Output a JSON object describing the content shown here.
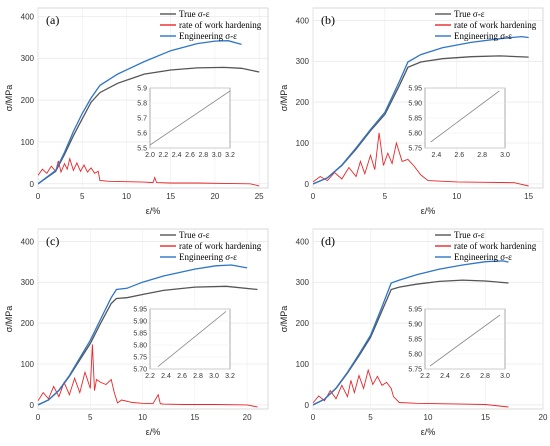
{
  "chart_data": [
    {
      "panel_label": "(a)",
      "type": "line",
      "xlabel": "ε/%",
      "ylabel": "σ/MPa",
      "xlim": [
        0,
        26
      ],
      "xticks": [
        0,
        5,
        10,
        15,
        20,
        25
      ],
      "ylim": [
        -10,
        420
      ],
      "yticks": [
        0,
        100,
        200,
        300,
        400
      ],
      "legend_position": "top-right",
      "grid": true,
      "series": [
        {
          "name": "True σ-ε",
          "color": "#555555",
          "x": [
            0,
            2,
            3,
            4,
            5,
            6,
            7,
            9,
            12,
            15,
            18,
            21,
            23,
            25
          ],
          "y": [
            0,
            30,
            70,
            115,
            155,
            195,
            218,
            240,
            262,
            272,
            277,
            278,
            276,
            267
          ]
        },
        {
          "name": "rate of work hardening",
          "color": "#e8272a",
          "x": [
            0,
            0.5,
            1,
            1.5,
            2,
            2.3,
            2.6,
            3,
            3.3,
            3.6,
            4,
            4.4,
            4.8,
            5.2,
            5.6,
            6,
            6.4,
            6.8,
            7,
            8,
            10,
            12,
            13,
            13.2,
            13.4,
            15,
            18,
            21,
            24,
            25
          ],
          "y": [
            20,
            35,
            25,
            42,
            30,
            55,
            28,
            48,
            35,
            60,
            32,
            50,
            30,
            45,
            28,
            38,
            25,
            30,
            8,
            6,
            5,
            4,
            3,
            15,
            3,
            2,
            2,
            1,
            0,
            -5
          ]
        },
        {
          "name": "Engineering σ-ε",
          "color": "#2e75c9",
          "x": [
            0,
            2,
            3,
            4,
            5,
            6,
            7,
            9,
            12,
            15,
            18,
            20,
            21.5,
            23
          ],
          "y": [
            0,
            32,
            75,
            125,
            168,
            205,
            235,
            262,
            292,
            318,
            335,
            341,
            342,
            333
          ]
        }
      ],
      "inset": {
        "xlim": [
          2.0,
          3.2
        ],
        "xticks": [
          2.0,
          2.2,
          2.4,
          2.6,
          2.8,
          3.0,
          3.2
        ],
        "ylim": [
          5.5,
          5.9
        ],
        "yticks": [
          5.5,
          5.6,
          5.7,
          5.8,
          5.9
        ],
        "line": {
          "x": [
            2.0,
            3.2
          ],
          "y": [
            5.52,
            5.88
          ]
        }
      }
    },
    {
      "panel_label": "(b)",
      "type": "line",
      "xlabel": "ε/%",
      "ylabel": "σ/MPa",
      "xlim": [
        0,
        16
      ],
      "xticks": [
        0,
        5,
        10,
        15
      ],
      "ylim": [
        -10,
        430
      ],
      "yticks": [
        0,
        100,
        200,
        300,
        400
      ],
      "legend_position": "top-right",
      "grid": true,
      "series": [
        {
          "name": "True σ-ε",
          "color": "#555555",
          "x": [
            0,
            1,
            2,
            3,
            4,
            5,
            6,
            6.6,
            7.5,
            9,
            11,
            13,
            15
          ],
          "y": [
            0,
            15,
            45,
            85,
            130,
            170,
            240,
            285,
            298,
            306,
            311,
            313,
            310
          ]
        },
        {
          "name": "rate of work hardening",
          "color": "#e8272a",
          "x": [
            0,
            0.5,
            1,
            1.5,
            2,
            2.5,
            3,
            3.3,
            3.6,
            4,
            4.3,
            4.6,
            4.9,
            5.2,
            5.5,
            5.8,
            6.2,
            6.6,
            7,
            7.5,
            8,
            10,
            12,
            14,
            15
          ],
          "y": [
            5,
            18,
            8,
            28,
            12,
            40,
            18,
            55,
            25,
            70,
            35,
            125,
            45,
            75,
            50,
            100,
            55,
            60,
            45,
            22,
            8,
            5,
            4,
            3,
            -5
          ]
        },
        {
          "name": "Engineering σ-ε",
          "color": "#2e75c9",
          "x": [
            0,
            1,
            2,
            3,
            4,
            5,
            6,
            6.6,
            7.5,
            9,
            11,
            13,
            14.5,
            15
          ],
          "y": [
            0,
            15,
            46,
            88,
            133,
            175,
            250,
            298,
            316,
            333,
            346,
            355,
            360,
            358
          ]
        }
      ],
      "inset": {
        "xlim": [
          2.3,
          3.0
        ],
        "xticks": [
          2.4,
          2.6,
          2.8,
          3.0
        ],
        "ylim": [
          5.75,
          5.95
        ],
        "yticks": [
          5.75,
          5.8,
          5.85,
          5.9,
          5.95
        ],
        "line": {
          "x": [
            2.35,
            2.95
          ],
          "y": [
            5.77,
            5.94
          ]
        }
      }
    },
    {
      "panel_label": "(c)",
      "type": "line",
      "xlabel": "ε/%",
      "ylabel": "σ/MPa",
      "xlim": [
        0,
        22
      ],
      "xticks": [
        0,
        5,
        10,
        15,
        20
      ],
      "ylim": [
        -10,
        430
      ],
      "yticks": [
        0,
        100,
        200,
        300,
        400
      ],
      "legend_position": "top-right",
      "grid": true,
      "series": [
        {
          "name": "True σ-ε",
          "color": "#555555",
          "x": [
            0,
            1,
            2,
            3,
            4,
            5,
            6,
            7,
            7.5,
            8.5,
            10,
            12,
            15,
            18,
            21
          ],
          "y": [
            0,
            12,
            35,
            70,
            110,
            150,
            200,
            248,
            260,
            262,
            270,
            280,
            288,
            290,
            282
          ]
        },
        {
          "name": "rate of work hardening",
          "color": "#e8272a",
          "x": [
            0,
            0.5,
            1,
            1.5,
            2,
            2.5,
            3,
            3.5,
            4,
            4.5,
            5,
            5.2,
            5.4,
            5.6,
            6,
            6.5,
            7,
            7.3,
            7.6,
            8,
            9,
            10,
            11,
            11.5,
            11.7,
            12,
            14,
            17,
            20,
            21
          ],
          "y": [
            10,
            30,
            15,
            45,
            20,
            55,
            25,
            65,
            30,
            80,
            40,
            148,
            35,
            62,
            55,
            50,
            62,
            30,
            5,
            12,
            6,
            4,
            3,
            25,
            3,
            2,
            1,
            1,
            0,
            -5
          ]
        },
        {
          "name": "Engineering σ-ε",
          "color": "#2e75c9",
          "x": [
            0,
            1,
            2,
            3,
            4,
            5,
            6,
            7,
            7.5,
            8.5,
            10,
            12,
            15,
            17,
            18.5,
            20
          ],
          "y": [
            0,
            12,
            36,
            72,
            115,
            158,
            210,
            262,
            282,
            285,
            300,
            315,
            332,
            340,
            342,
            335
          ]
        }
      ],
      "inset": {
        "xlim": [
          2.2,
          3.2
        ],
        "xticks": [
          2.2,
          2.4,
          2.6,
          2.8,
          3.0,
          3.2
        ],
        "ylim": [
          5.7,
          5.95
        ],
        "yticks": [
          5.7,
          5.75,
          5.8,
          5.85,
          5.9,
          5.95
        ],
        "line": {
          "x": [
            2.3,
            3.15
          ],
          "y": [
            5.71,
            5.94
          ]
        }
      }
    },
    {
      "panel_label": "(d)",
      "type": "line",
      "xlabel": "ε/%",
      "ylabel": "σ/MPa",
      "xlim": [
        0,
        20
      ],
      "xticks": [
        0,
        5,
        10,
        15,
        20
      ],
      "ylim": [
        -10,
        430
      ],
      "yticks": [
        0,
        100,
        200,
        300,
        400
      ],
      "legend_position": "top-right",
      "grid": true,
      "series": [
        {
          "name": "True σ-ε",
          "color": "#555555",
          "x": [
            0,
            1,
            2,
            3,
            4,
            5,
            6,
            6.8,
            7.5,
            9,
            11,
            13,
            15,
            17
          ],
          "y": [
            0,
            14,
            40,
            78,
            120,
            165,
            230,
            282,
            288,
            295,
            302,
            305,
            303,
            298
          ]
        },
        {
          "name": "rate of work hardening",
          "color": "#e8272a",
          "x": [
            0,
            0.5,
            1,
            1.5,
            2,
            2.5,
            3,
            3.3,
            3.6,
            4,
            4.4,
            4.8,
            5.2,
            5.6,
            6,
            6.4,
            6.8,
            7,
            7.5,
            9,
            11,
            13,
            15,
            17
          ],
          "y": [
            5,
            22,
            10,
            35,
            15,
            48,
            20,
            60,
            30,
            72,
            40,
            85,
            50,
            70,
            48,
            55,
            40,
            20,
            6,
            4,
            3,
            2,
            1,
            -5
          ]
        },
        {
          "name": "Engineering σ-ε",
          "color": "#2e75c9",
          "x": [
            0,
            1,
            2,
            3,
            4,
            5,
            6,
            6.8,
            7.5,
            9,
            11,
            13,
            15,
            16.5,
            17
          ],
          "y": [
            0,
            14,
            41,
            80,
            124,
            170,
            240,
            298,
            305,
            318,
            332,
            342,
            350,
            352,
            349
          ]
        }
      ],
      "inset": {
        "xlim": [
          2.2,
          3.0
        ],
        "xticks": [
          2.2,
          2.4,
          2.6,
          2.8,
          3.0
        ],
        "ylim": [
          5.75,
          5.95
        ],
        "yticks": [
          5.75,
          5.8,
          5.85,
          5.9,
          5.95
        ],
        "line": {
          "x": [
            2.25,
            2.95
          ],
          "y": [
            5.76,
            5.93
          ]
        }
      }
    }
  ]
}
